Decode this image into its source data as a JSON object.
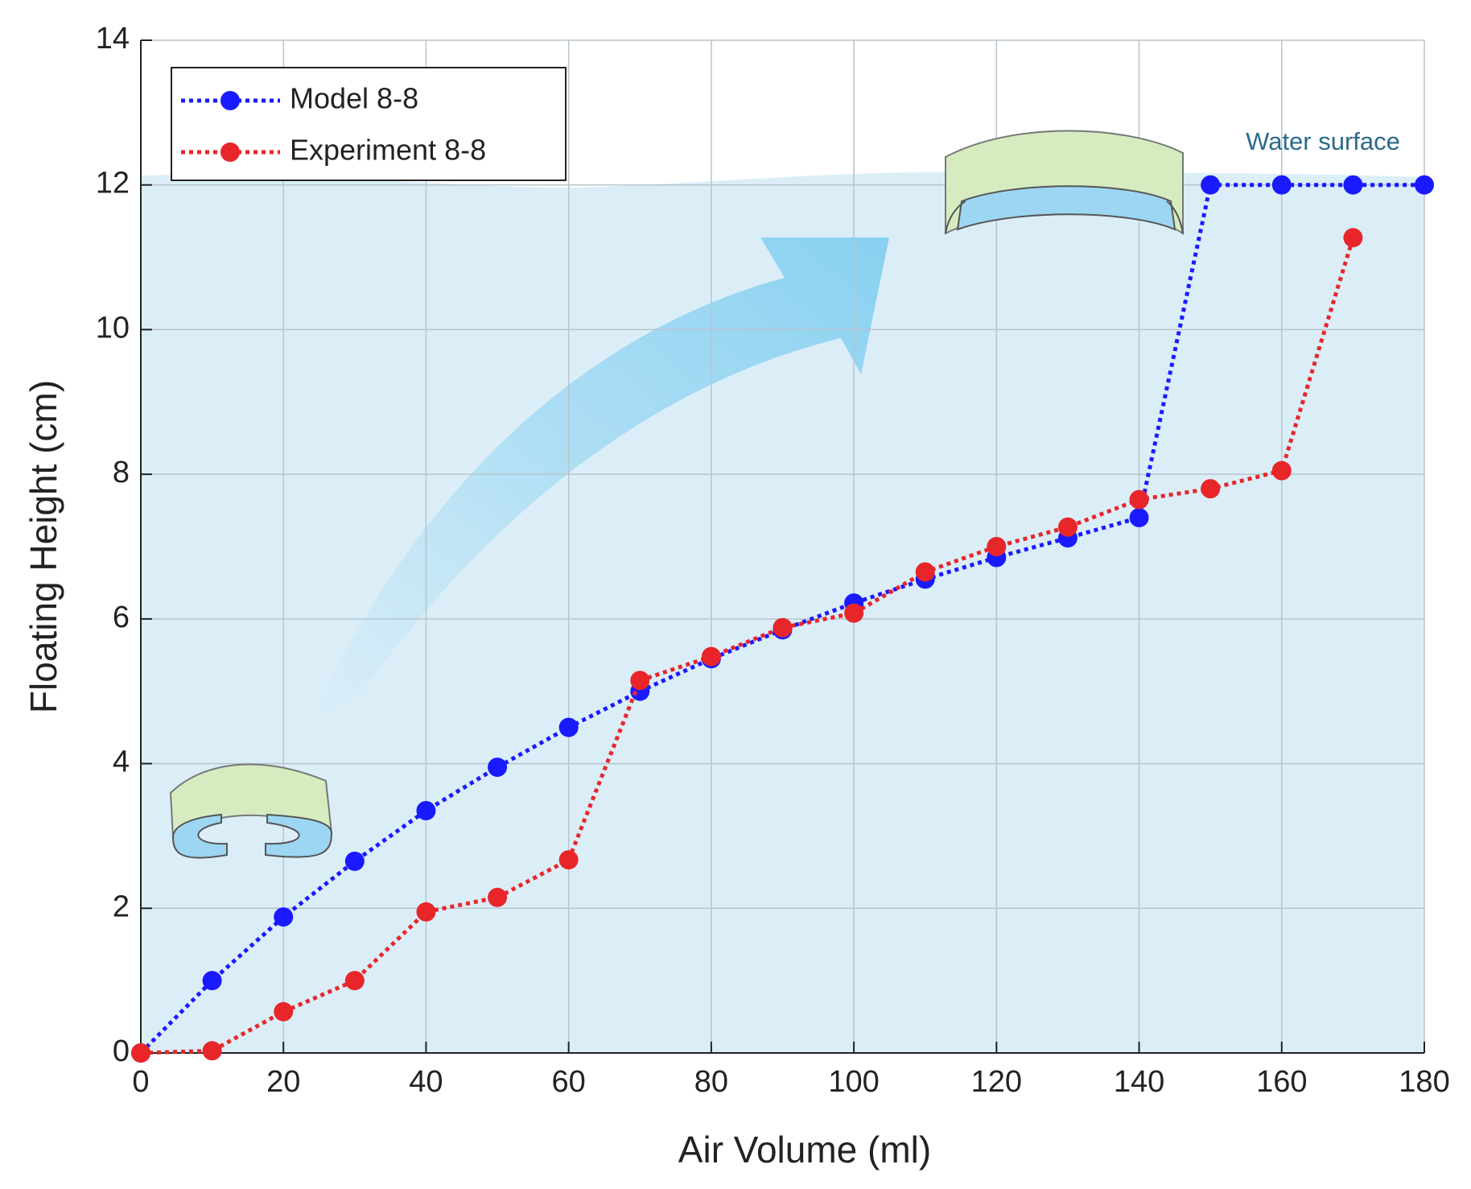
{
  "chart_data": {
    "type": "line",
    "xlabel": "Air Volume (ml)",
    "ylabel": "Floating Height (cm)",
    "annotation": "Water surface",
    "x": [
      0,
      10,
      20,
      30,
      40,
      50,
      60,
      70,
      80,
      90,
      100,
      110,
      120,
      130,
      140,
      150,
      160,
      170,
      180
    ],
    "series": [
      {
        "name": "Model 8-8",
        "color": "#1a1aff",
        "values": [
          0,
          1.0,
          1.88,
          2.65,
          3.35,
          3.95,
          4.5,
          5.0,
          5.45,
          5.85,
          6.22,
          6.55,
          6.85,
          7.12,
          7.4,
          12,
          12,
          12,
          12
        ]
      },
      {
        "name": "Experiment 8-8",
        "color": "#e8262a",
        "values": [
          0,
          0.03,
          0.57,
          1.0,
          1.95,
          2.15,
          2.67,
          5.15,
          5.48,
          5.88,
          6.08,
          6.65,
          7.0,
          7.27,
          7.65,
          7.8,
          8.05,
          11.27,
          null
        ]
      }
    ],
    "xlim": [
      0,
      180
    ],
    "ylim": [
      0,
      14
    ],
    "xticks": [
      0,
      20,
      40,
      60,
      80,
      100,
      120,
      140,
      160,
      180
    ],
    "yticks": [
      0,
      2,
      4,
      6,
      8,
      10,
      12,
      14
    ],
    "grid": true,
    "legend": "upper left"
  }
}
